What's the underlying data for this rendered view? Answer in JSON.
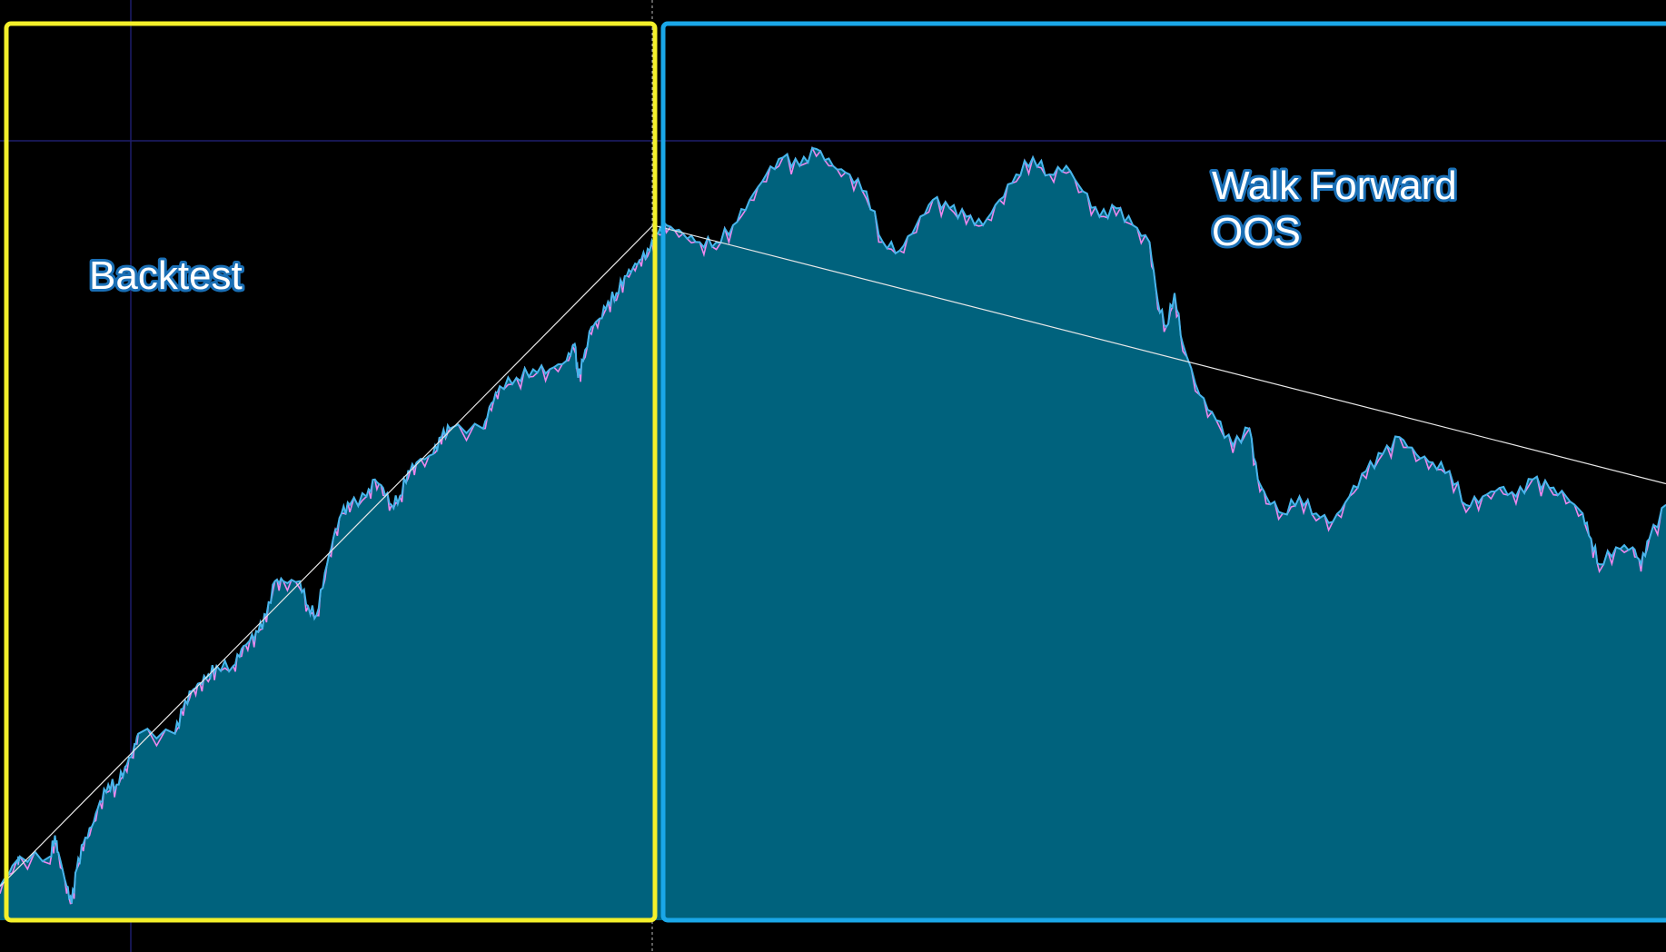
{
  "chart_data": {
    "type": "area",
    "title": "",
    "xlabel": "",
    "ylabel": "",
    "grid": false,
    "regions": [
      {
        "label": "Backtest",
        "start": 0,
        "end": 0.39,
        "color": "#f4f02a"
      },
      {
        "label": "Walk Forward\nOOS",
        "start": 0.395,
        "end": 1.0,
        "color": "#1aa7e8"
      }
    ],
    "labels": {
      "backtest": "Backtest",
      "wf_line1": "Walk Forward",
      "wf_line2": "OOS"
    },
    "x_range": [
      0,
      100
    ],
    "y_range": [
      0,
      100
    ],
    "series": [
      {
        "values": [
          [
            0,
            4
          ],
          [
            1,
            7
          ],
          [
            1.2,
            7.5
          ],
          [
            3,
            7.5
          ],
          [
            3.3,
            10
          ],
          [
            3.5,
            8
          ],
          [
            4,
            4
          ],
          [
            4.3,
            2
          ],
          [
            4.6,
            6
          ],
          [
            5,
            9
          ],
          [
            5.5,
            11
          ],
          [
            6,
            14
          ],
          [
            6.5,
            16
          ],
          [
            7,
            16
          ],
          [
            7.5,
            18
          ],
          [
            8,
            20
          ],
          [
            8.3,
            22
          ],
          [
            10.5,
            22
          ],
          [
            11,
            25
          ],
          [
            11.5,
            27
          ],
          [
            12,
            28
          ],
          [
            12.5,
            29
          ],
          [
            13,
            30
          ],
          [
            14,
            30
          ],
          [
            14.5,
            32
          ],
          [
            15,
            33
          ],
          [
            15.5,
            34
          ],
          [
            16,
            36
          ],
          [
            16.5,
            40
          ],
          [
            17,
            40
          ],
          [
            18,
            40
          ],
          [
            18.5,
            37
          ],
          [
            19,
            36
          ],
          [
            19.5,
            41
          ],
          [
            20,
            45
          ],
          [
            20.5,
            48
          ],
          [
            21,
            49
          ],
          [
            22,
            50
          ],
          [
            22.5,
            52
          ],
          [
            23,
            51
          ],
          [
            23.5,
            49
          ],
          [
            24,
            50
          ],
          [
            24.5,
            53
          ],
          [
            25,
            54
          ],
          [
            26,
            55
          ],
          [
            26.5,
            57
          ],
          [
            27,
            58
          ],
          [
            29,
            58
          ],
          [
            29.5,
            61
          ],
          [
            30,
            63
          ],
          [
            31,
            64
          ],
          [
            32,
            65
          ],
          [
            33,
            65
          ],
          [
            34,
            66
          ],
          [
            34.5,
            68
          ],
          [
            34.7,
            64
          ],
          [
            35,
            66
          ],
          [
            35.5,
            70
          ],
          [
            36,
            71
          ],
          [
            36.5,
            73
          ],
          [
            37,
            74
          ],
          [
            37.5,
            76
          ],
          [
            38,
            77
          ],
          [
            38.5,
            78
          ],
          [
            39,
            79
          ],
          [
            39.5,
            81
          ],
          [
            40,
            82
          ],
          [
            41,
            81
          ],
          [
            42,
            80
          ],
          [
            43,
            80
          ],
          [
            44,
            82
          ],
          [
            45,
            85
          ],
          [
            46,
            88
          ],
          [
            47,
            90
          ],
          [
            48,
            89
          ],
          [
            49,
            91
          ],
          [
            50,
            89
          ],
          [
            51,
            88
          ],
          [
            52,
            86
          ],
          [
            53,
            80
          ],
          [
            54,
            79
          ],
          [
            55,
            82
          ],
          [
            56,
            85
          ],
          [
            57,
            84
          ],
          [
            58,
            83
          ],
          [
            59,
            82
          ],
          [
            60,
            85
          ],
          [
            61,
            88
          ],
          [
            62,
            90
          ],
          [
            63,
            88
          ],
          [
            64,
            89
          ],
          [
            65,
            86
          ],
          [
            66,
            83
          ],
          [
            67,
            84
          ],
          [
            68,
            82
          ],
          [
            69,
            80
          ],
          [
            69.5,
            73
          ],
          [
            70,
            70
          ],
          [
            70.5,
            74
          ],
          [
            71,
            68
          ],
          [
            72,
            62
          ],
          [
            73,
            59
          ],
          [
            74,
            56
          ],
          [
            75,
            58
          ],
          [
            75.5,
            52
          ],
          [
            76,
            50
          ],
          [
            77,
            48
          ],
          [
            78,
            50
          ],
          [
            79,
            48
          ],
          [
            80,
            47
          ],
          [
            81,
            50
          ],
          [
            82,
            53
          ],
          [
            83,
            55
          ],
          [
            84,
            57
          ],
          [
            85,
            55
          ],
          [
            86,
            54
          ],
          [
            87,
            53
          ],
          [
            88,
            49
          ],
          [
            89,
            50
          ],
          [
            90,
            51
          ],
          [
            91,
            50
          ],
          [
            92,
            52
          ],
          [
            93,
            51
          ],
          [
            94,
            50
          ],
          [
            95,
            48
          ],
          [
            95.5,
            45
          ],
          [
            96,
            42
          ],
          [
            97,
            44
          ],
          [
            98,
            44
          ],
          [
            98.5,
            42
          ],
          [
            99,
            45
          ],
          [
            100,
            49
          ]
        ]
      }
    ],
    "trendlines": [
      {
        "from": [
          0,
          4
        ],
        "to": [
          39.2,
          82
        ]
      },
      {
        "from": [
          39.2,
          82
        ],
        "to": [
          100,
          51.5
        ]
      }
    ]
  }
}
